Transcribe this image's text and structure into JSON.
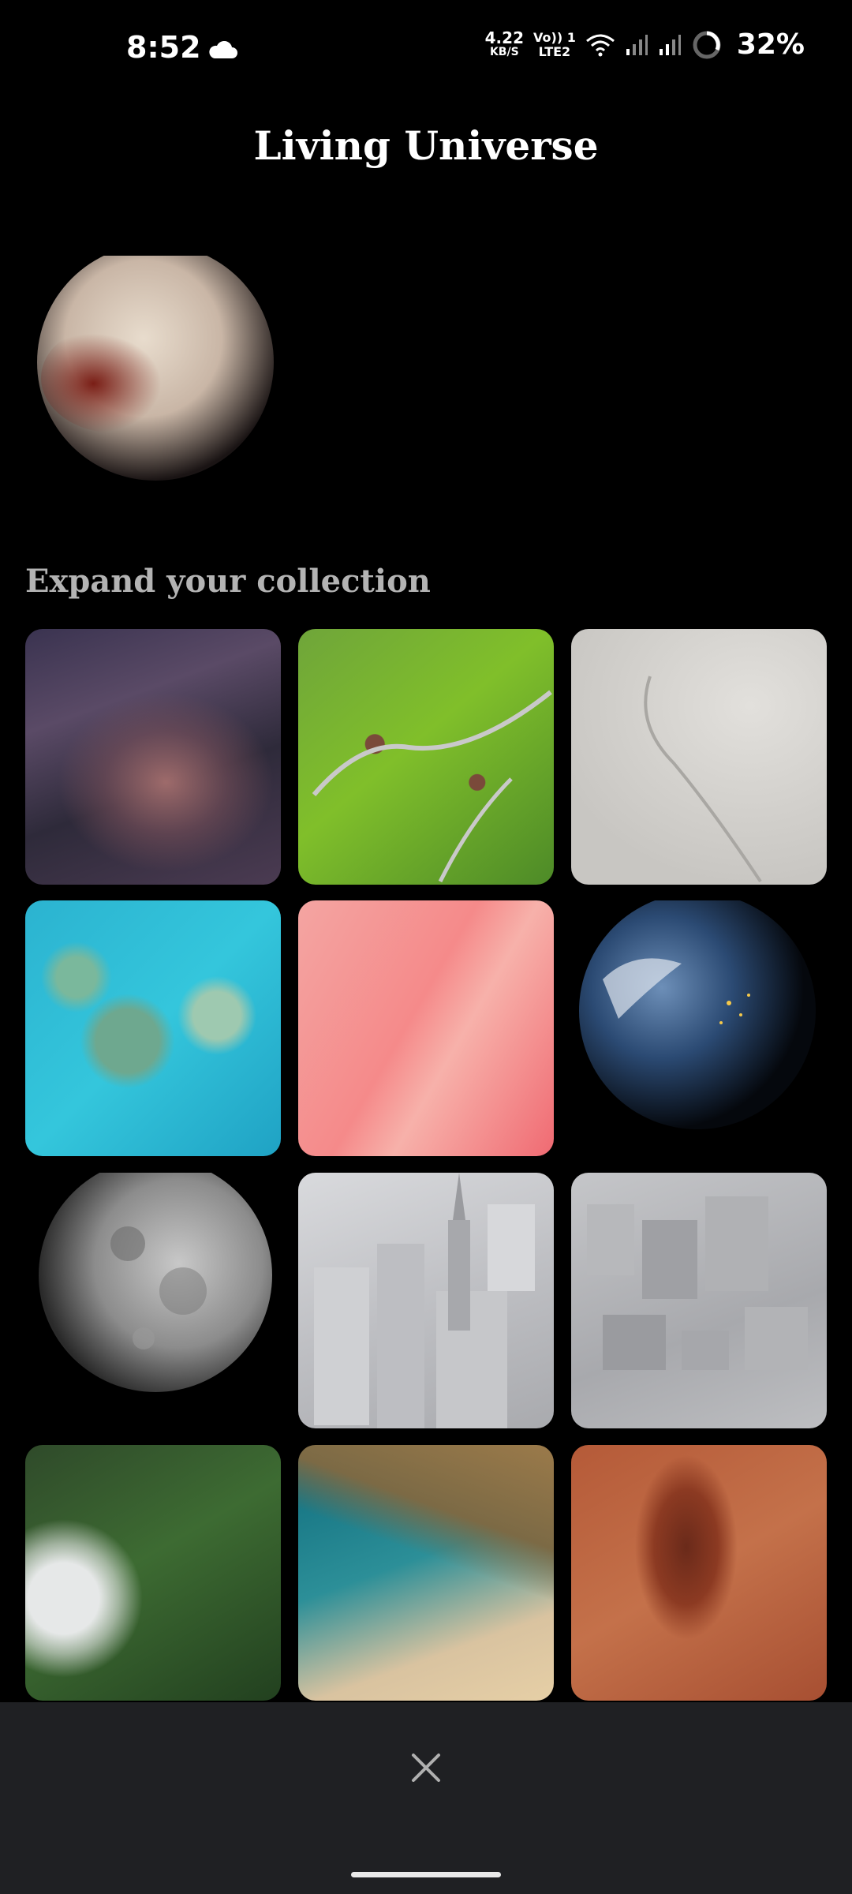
{
  "status_bar": {
    "time": "8:52",
    "net_speed": "4.22",
    "net_unit": "KB/S",
    "volte_top": "Vo)) 1",
    "volte_bottom": "LTE2",
    "battery": "32%"
  },
  "header": {
    "title": "Living Universe"
  },
  "current": {
    "wallpaper": "pluto-wallpaper"
  },
  "collection": {
    "label": "Expand your collection",
    "items": [
      "rock-canyon-wallpaper",
      "green-hills-wallpaper",
      "white-sand-wallpaper",
      "reef-wallpaper",
      "pink-clouds-wallpaper",
      "earth-wallpaper",
      "moon-wallpaper",
      "city-tower-wallpaper",
      "city-blocks-wallpaper",
      "forest-wallpaper",
      "beach-wallpaper",
      "red-desert-wallpaper"
    ]
  },
  "footer": {
    "close_icon": "close-icon"
  }
}
